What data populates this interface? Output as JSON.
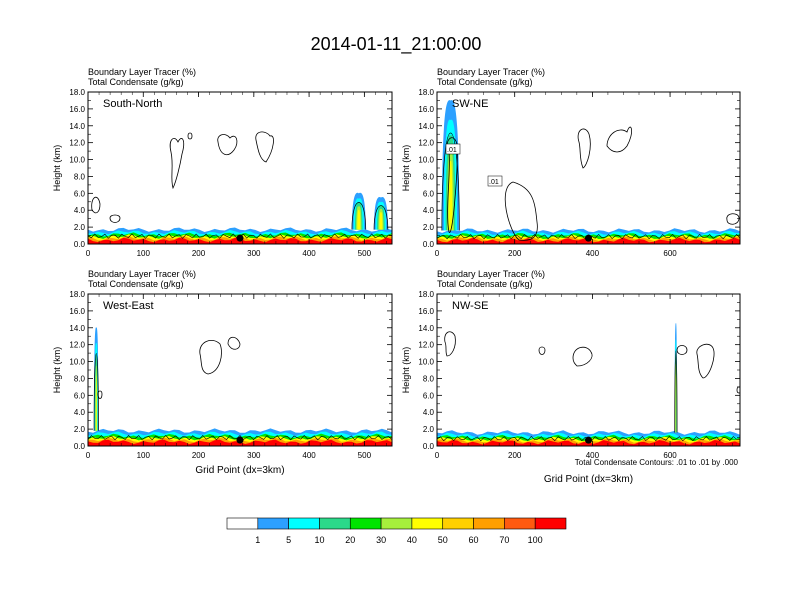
{
  "title": "2014-01-11_21:00:00",
  "colors": {
    "levels": [
      "#ffffff",
      "#1e78ff",
      "#2ca0ff",
      "#00ffff",
      "#2bd98a",
      "#00e400",
      "#a6f03c",
      "#ffff00",
      "#ffd000",
      "#ff9f00",
      "#ff5a10",
      "#ff0000"
    ],
    "contour": "#000000"
  },
  "legend": {
    "labels": [
      "1",
      "5",
      "10",
      "20",
      "30",
      "40",
      "50",
      "60",
      "70",
      "100"
    ],
    "contour_note": "Total Condensate Contours: .01 to .01 by .000"
  },
  "chart_data": [
    {
      "type": "heatmap",
      "panel_label": "South-North",
      "subtitle_left_1": "Boundary Layer Tracer   (%)",
      "subtitle_left_2": "Total Condensate   (g/kg)",
      "xlabel": "",
      "ylabel": "Height (km)",
      "xlim": [
        0,
        550
      ],
      "ylim": [
        0,
        18
      ],
      "xticks": [
        0,
        100,
        200,
        300,
        400,
        500
      ],
      "yticks": [
        0,
        2,
        4,
        6,
        8,
        10,
        12,
        14,
        16,
        18
      ],
      "ytick_labels": [
        "0.0",
        "2.0",
        "4.0",
        "6.0",
        "8.0",
        "10.0",
        "12.0",
        "14.0",
        "16.0",
        "18.0"
      ],
      "boundary_layer_top_km": 1.7,
      "plumes": [
        {
          "x_center": 490,
          "x_width": 25,
          "top_km": 6.0
        },
        {
          "x_center": 530,
          "x_width": 25,
          "top_km": 5.5
        }
      ],
      "contour_labels": []
    },
    {
      "type": "heatmap",
      "panel_label": "SW-NE",
      "subtitle_left_1": "Boundary Layer Tracer   (%)",
      "subtitle_left_2": "Total Condensate   (g/kg)",
      "xlabel": "",
      "ylabel": "Height (km)",
      "xlim": [
        0,
        780
      ],
      "ylim": [
        0,
        18
      ],
      "xticks": [
        0,
        200,
        400,
        600
      ],
      "yticks": [
        0,
        2,
        4,
        6,
        8,
        10,
        12,
        14,
        16,
        18
      ],
      "ytick_labels": [
        "0.0",
        "2.0",
        "4.0",
        "6.0",
        "8.0",
        "10.0",
        "12.0",
        "14.0",
        "16.0",
        "18.0"
      ],
      "boundary_layer_top_km": 1.6,
      "plumes": [
        {
          "x_center": 35,
          "x_width": 45,
          "top_km": 17.0
        }
      ],
      "contour_labels": [
        ".01",
        ".01"
      ]
    },
    {
      "type": "heatmap",
      "panel_label": "West-East",
      "subtitle_left_1": "Boundary Layer Tracer   (%)",
      "subtitle_left_2": "Total Condensate   (g/kg)",
      "xlabel": "Grid Point (dx=3km)",
      "ylabel": "Height (km)",
      "xlim": [
        0,
        550
      ],
      "ylim": [
        0,
        18
      ],
      "xticks": [
        0,
        100,
        200,
        300,
        400,
        500
      ],
      "yticks": [
        0,
        2,
        4,
        6,
        8,
        10,
        12,
        14,
        16,
        18
      ],
      "ytick_labels": [
        "0.0",
        "2.0",
        "4.0",
        "6.0",
        "8.0",
        "10.0",
        "12.0",
        "14.0",
        "16.0",
        "18.0"
      ],
      "boundary_layer_top_km": 1.8,
      "plumes": [
        {
          "x_center": 15,
          "x_width": 8,
          "top_km": 14.0
        }
      ],
      "contour_labels": []
    },
    {
      "type": "heatmap",
      "panel_label": "NW-SE",
      "subtitle_left_1": "Boundary Layer Tracer   (%)",
      "subtitle_left_2": "Total Condensate   (g/kg)",
      "xlabel": "Grid Point (dx=3km)",
      "ylabel": "Height (km)",
      "xlim": [
        0,
        780
      ],
      "ylim": [
        0,
        18
      ],
      "xticks": [
        0,
        200,
        400,
        600
      ],
      "yticks": [
        0,
        2,
        4,
        6,
        8,
        10,
        12,
        14,
        16,
        18
      ],
      "ytick_labels": [
        "0.0",
        "2.0",
        "4.0",
        "6.0",
        "8.0",
        "10.0",
        "12.0",
        "14.0",
        "16.0",
        "18.0"
      ],
      "boundary_layer_top_km": 1.6,
      "plumes": [
        {
          "x_center": 615,
          "x_width": 6,
          "top_km": 14.5
        }
      ],
      "contour_labels": []
    }
  ]
}
